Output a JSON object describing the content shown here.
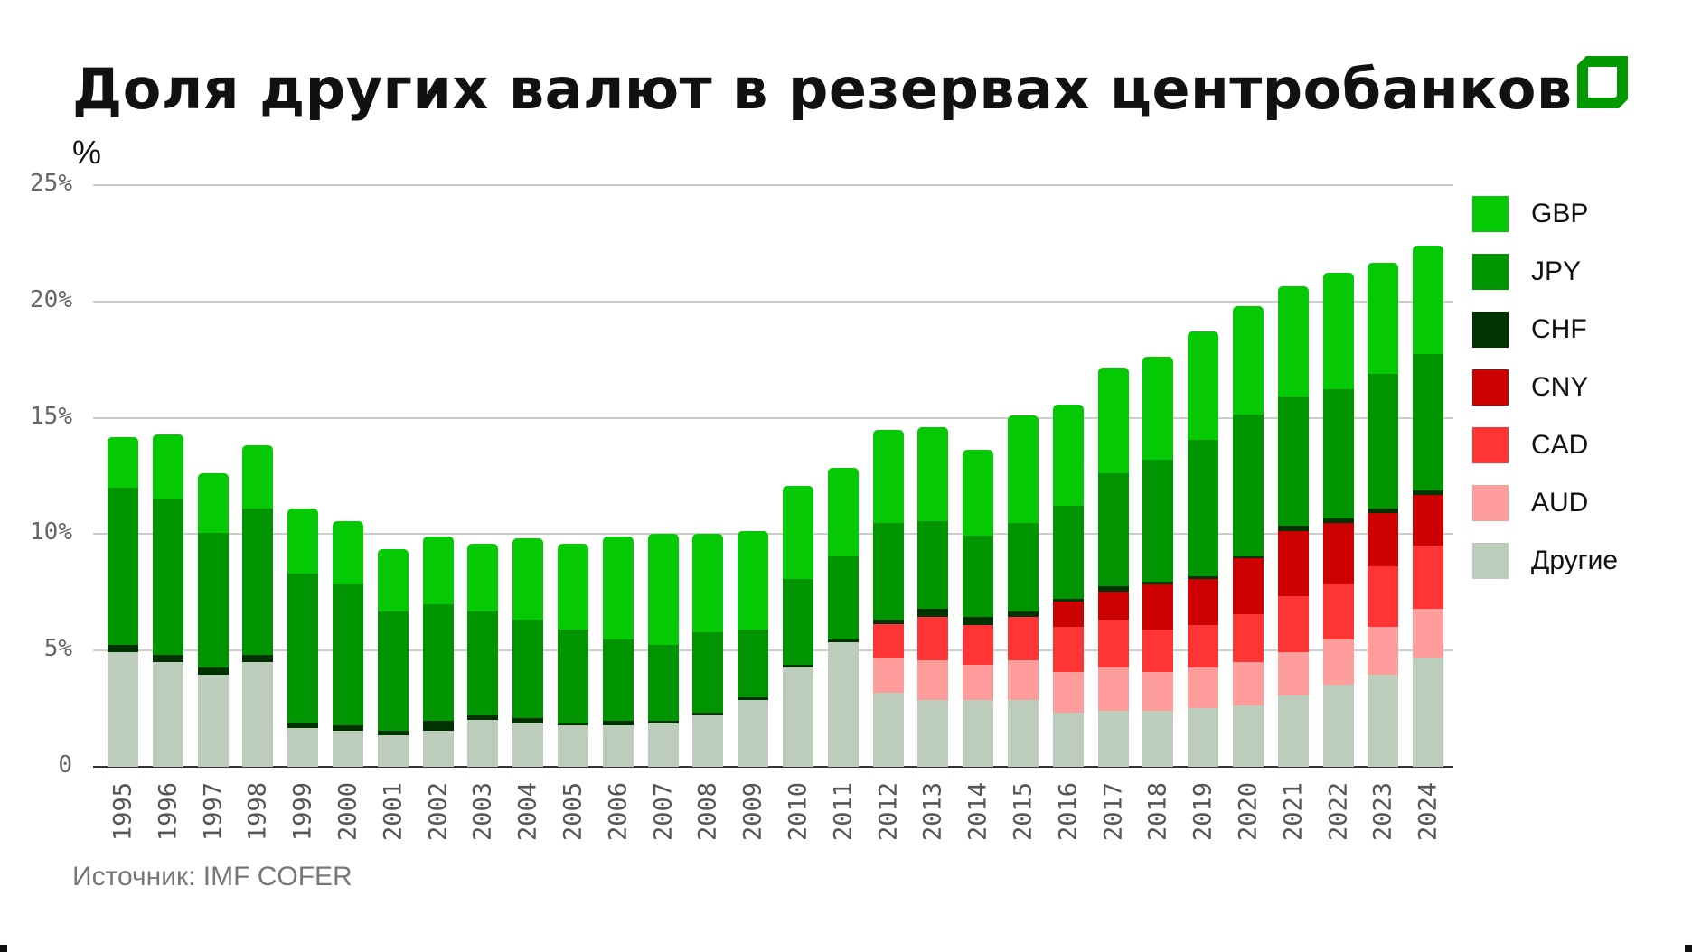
{
  "title": "Доля других валют в резервах центробанков",
  "unit_label": "%",
  "source": "Источник: IMF COFER",
  "brand_color": "#009900",
  "chart_data": {
    "type": "bar",
    "stacked": true,
    "title": "Доля других валют в резервах центробанков",
    "xlabel": "",
    "ylabel": "%",
    "ylim": [
      0,
      25
    ],
    "yticks": [
      {
        "value": 0,
        "label": "0"
      },
      {
        "value": 5,
        "label": "5%"
      },
      {
        "value": 10,
        "label": "10%"
      },
      {
        "value": 15,
        "label": "15%"
      },
      {
        "value": 20,
        "label": "20%"
      },
      {
        "value": 25,
        "label": "25%"
      }
    ],
    "grid": true,
    "legend_position": "right",
    "categories": [
      "1995",
      "1996",
      "1997",
      "1998",
      "1999",
      "2000",
      "2001",
      "2002",
      "2003",
      "2004",
      "2005",
      "2006",
      "2007",
      "2008",
      "2009",
      "2010",
      "2011",
      "2012",
      "2013",
      "2014",
      "2015",
      "2016",
      "2017",
      "2018",
      "2019",
      "2020",
      "2021",
      "2022",
      "2023",
      "2024"
    ],
    "series": [
      {
        "name": "Другие",
        "color": "#bccdbb",
        "values": [
          4.93,
          4.49,
          3.95,
          4.49,
          1.67,
          1.57,
          1.36,
          1.57,
          2.0,
          1.88,
          1.78,
          1.78,
          1.88,
          2.21,
          2.87,
          4.29,
          5.37,
          3.19,
          2.86,
          2.86,
          2.86,
          2.32,
          2.42,
          2.42,
          2.53,
          2.65,
          3.08,
          3.52,
          3.95,
          4.7
        ]
      },
      {
        "name": "AUD",
        "color": "#ff9c9c",
        "values": [
          0,
          0,
          0,
          0,
          0,
          0,
          0,
          0,
          0,
          0,
          0,
          0,
          0,
          0,
          0,
          0,
          0,
          1.51,
          1.74,
          1.51,
          1.74,
          1.74,
          1.87,
          1.64,
          1.76,
          1.84,
          1.85,
          1.95,
          2.06,
          2.08
        ]
      },
      {
        "name": "CAD",
        "color": "#ff3535",
        "values": [
          0,
          0,
          0,
          0,
          0,
          0,
          0,
          0,
          0,
          0,
          0,
          0,
          0,
          0,
          0,
          0,
          0,
          1.43,
          1.85,
          1.74,
          1.85,
          1.95,
          2.05,
          1.85,
          1.82,
          2.06,
          2.39,
          2.39,
          2.61,
          2.72
        ]
      },
      {
        "name": "CNY",
        "color": "#cc0000",
        "values": [
          0,
          0,
          0,
          0,
          0,
          0,
          0,
          0,
          0,
          0,
          0,
          0,
          0,
          0,
          0,
          0,
          0,
          0,
          0,
          0,
          0,
          1.1,
          1.2,
          1.95,
          1.97,
          2.41,
          2.82,
          2.61,
          2.29,
          2.17
        ]
      },
      {
        "name": "CHF",
        "color": "#003300",
        "values": [
          0.33,
          0.34,
          0.34,
          0.34,
          0.23,
          0.21,
          0.21,
          0.43,
          0.21,
          0.21,
          0.1,
          0.21,
          0.11,
          0.12,
          0.11,
          0.1,
          0.1,
          0.21,
          0.33,
          0.34,
          0.21,
          0.1,
          0.21,
          0.1,
          0.11,
          0.1,
          0.21,
          0.21,
          0.2,
          0.21
        ]
      },
      {
        "name": "JPY",
        "color": "#009400",
        "values": [
          6.73,
          6.72,
          5.76,
          6.28,
          6.41,
          6.08,
          5.09,
          4.99,
          4.45,
          4.25,
          4.03,
          3.48,
          3.27,
          3.47,
          2.93,
          3.69,
          3.59,
          4.13,
          3.8,
          3.48,
          3.81,
          4.03,
          4.88,
          5.23,
          5.87,
          6.08,
          5.56,
          5.54,
          5.77,
          5.87
        ]
      },
      {
        "name": "GBP",
        "color": "#05c905",
        "values": [
          2.17,
          2.72,
          2.58,
          2.72,
          2.8,
          2.7,
          2.71,
          2.92,
          2.92,
          3.47,
          3.67,
          4.44,
          4.76,
          4.22,
          4.23,
          4.01,
          3.8,
          4.01,
          4.02,
          3.68,
          4.65,
          4.32,
          4.55,
          4.42,
          4.65,
          4.65,
          4.75,
          5.0,
          4.78,
          4.66
        ]
      }
    ],
    "totals": [
      14.16,
      14.27,
      12.63,
      13.83,
      11.11,
      10.56,
      9.37,
      9.91,
      9.58,
      9.81,
      9.58,
      9.91,
      10.02,
      10.02,
      10.14,
      12.09,
      12.86,
      14.48,
      14.6,
      13.61,
      15.12,
      15.56,
      17.18,
      17.61,
      18.71,
      19.79,
      20.66,
      21.22,
      21.66,
      22.41
    ]
  },
  "legend": [
    {
      "label": "GBP",
      "color": "#05c905"
    },
    {
      "label": "JPY",
      "color": "#009400"
    },
    {
      "label": "CHF",
      "color": "#003300"
    },
    {
      "label": "CNY",
      "color": "#cc0000"
    },
    {
      "label": "CAD",
      "color": "#ff3535"
    },
    {
      "label": "AUD",
      "color": "#ff9c9c"
    },
    {
      "label": "Другие",
      "color": "#bccdbb"
    }
  ]
}
